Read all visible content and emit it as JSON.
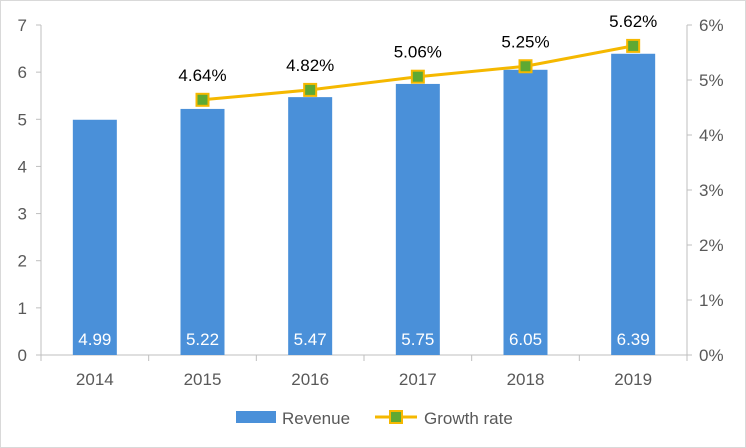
{
  "chart_data": {
    "type": "bar",
    "title": "",
    "xlabel": "",
    "ylabel": "",
    "categories": [
      "2014",
      "2015",
      "2016",
      "2017",
      "2018",
      "2019"
    ],
    "series": [
      {
        "name": "Revenue",
        "type": "bar",
        "axis": "left",
        "color": "#4a90d9",
        "values": [
          4.99,
          5.22,
          5.47,
          5.75,
          6.05,
          6.39
        ],
        "labels": [
          "4.99",
          "5.22",
          "5.47",
          "5.75",
          "6.05",
          "6.39"
        ]
      },
      {
        "name": "Growth rate",
        "type": "line",
        "axis": "right",
        "line_color": "#f5b800",
        "marker_color": "#5ea933",
        "values": [
          null,
          4.64,
          4.82,
          5.06,
          5.25,
          5.62
        ],
        "labels": [
          "",
          "4.64%",
          "4.82%",
          "5.06%",
          "5.25%",
          "5.62%"
        ]
      }
    ],
    "y_left": {
      "range": [
        0,
        7
      ],
      "ticks": [
        "0",
        "1",
        "2",
        "3",
        "4",
        "5",
        "6",
        "7"
      ]
    },
    "y_right": {
      "range": [
        0,
        6
      ],
      "ticks": [
        "0%",
        "1%",
        "2%",
        "3%",
        "4%",
        "5%",
        "6%"
      ]
    },
    "grid": false,
    "legend": {
      "position": "bottom",
      "entries": [
        "Revenue",
        "Growth rate"
      ]
    }
  }
}
